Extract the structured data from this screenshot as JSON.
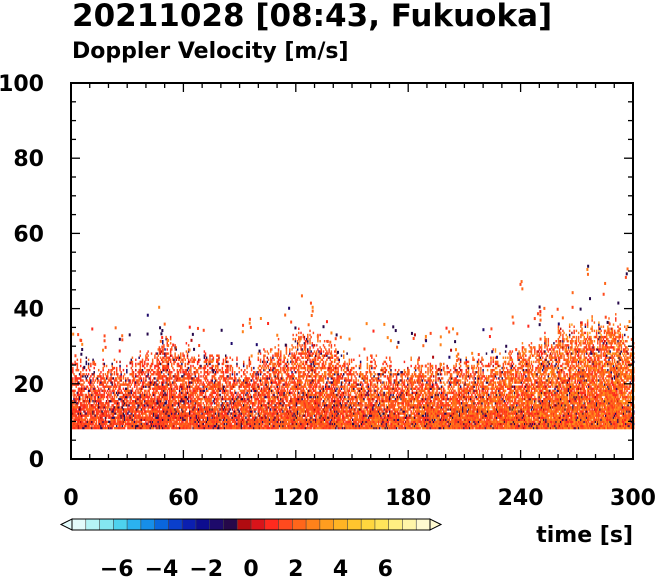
{
  "chart_data": {
    "type": "heatmap",
    "title": "20211028 [08:43, Fukuoka]",
    "subtitle": "Doppler Velocity [m/s]",
    "xlabel": "time [s]",
    "ylabel": "",
    "xlim": [
      0,
      300
    ],
    "ylim": [
      0,
      100
    ],
    "xticks": [
      0,
      60,
      120,
      180,
      240,
      300
    ],
    "yticks": [
      0,
      20,
      40,
      60,
      80,
      100
    ],
    "grid": false,
    "data_floor_height": 8,
    "echo_top_profile": [
      {
        "t": 0,
        "h": 25
      },
      {
        "t": 30,
        "h": 24
      },
      {
        "t": 50,
        "h": 30
      },
      {
        "t": 90,
        "h": 24
      },
      {
        "t": 125,
        "h": 33
      },
      {
        "t": 150,
        "h": 25
      },
      {
        "t": 200,
        "h": 24
      },
      {
        "t": 240,
        "h": 28
      },
      {
        "t": 260,
        "h": 33
      },
      {
        "t": 290,
        "h": 36
      },
      {
        "t": 300,
        "h": 30
      }
    ],
    "scattered_high_echoes": [
      {
        "t": 5,
        "h": 32
      },
      {
        "t": 48,
        "h": 35
      },
      {
        "t": 95,
        "h": 38
      },
      {
        "t": 128,
        "h": 42
      },
      {
        "t": 250,
        "h": 41
      },
      {
        "t": 240,
        "h": 48
      },
      {
        "t": 275,
        "h": 52
      },
      {
        "t": 296,
        "h": 51
      }
    ],
    "colorbar": {
      "label_values": [
        -6,
        -4,
        -2,
        0,
        2,
        4,
        6
      ],
      "labels": [
        "−6",
        "−4",
        "−2",
        "0",
        "2",
        "4",
        "6"
      ],
      "range": [
        -8,
        8
      ],
      "colors": [
        "#e3fbfb",
        "#b5f4f6",
        "#84e6f0",
        "#4dd2ee",
        "#2bb2ef",
        "#168ee9",
        "#0a66dd",
        "#0a3fcc",
        "#0b1fb0",
        "#0d0d8f",
        "#1d0a6b",
        "#25084a",
        "#b00b10",
        "#d9141a",
        "#ff2a1e",
        "#ff4a1e",
        "#ff661a",
        "#ff821a",
        "#ff9d1f",
        "#ffb424",
        "#ffc52e",
        "#ffd63e",
        "#ffe45a",
        "#ffef82",
        "#fff5a8",
        "#fffad0"
      ]
    }
  }
}
